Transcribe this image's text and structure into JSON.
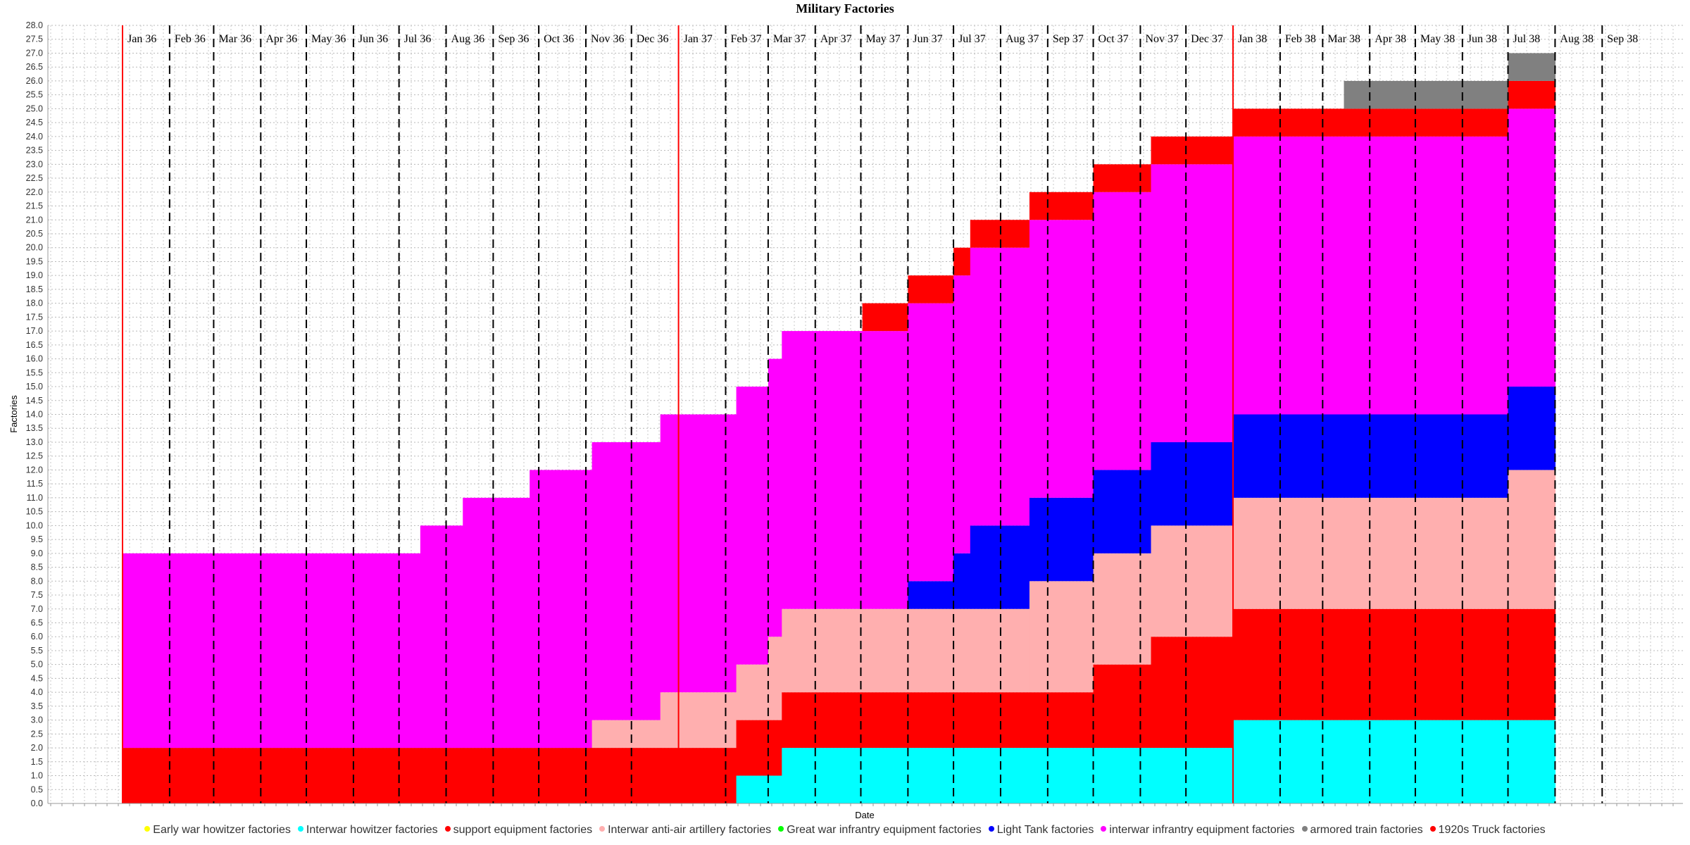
{
  "chart_data": {
    "type": "area",
    "title": "Military Factories",
    "xlabel": "Date",
    "ylabel": "Factories",
    "ylim": [
      0,
      28
    ],
    "ytick_step": 0.5,
    "grid": true,
    "stacked": true,
    "step": true,
    "legend_position": "bottom",
    "x_start": "1936-01-01",
    "x_end": "1938-08-01",
    "x_axis_max": "1938-10-01",
    "month_labels": [
      "Jan 36",
      "Feb 36",
      "Mar 36",
      "Apr 36",
      "May 36",
      "Jun 36",
      "Jul 36",
      "Aug 36",
      "Sep 36",
      "Oct 36",
      "Nov 36",
      "Dec 36",
      "Jan 37",
      "Feb 37",
      "Mar 37",
      "Apr 37",
      "May 37",
      "Jun 37",
      "Jul 37",
      "Aug 37",
      "Sep 37",
      "Oct 37",
      "Nov 37",
      "Dec 37",
      "Jan 38",
      "Feb 38",
      "Mar 38",
      "Apr 38",
      "May 38",
      "Jun 38",
      "Jul 38",
      "Aug 38",
      "Sep 38"
    ],
    "year_markers": [
      "1936-01-01",
      "1937-01-01",
      "1938-01-01"
    ],
    "legend": [
      {
        "name": "Early war howitzer factories",
        "color": "#ffff00"
      },
      {
        "name": "Interwar howitzer factories",
        "color": "#00ffff"
      },
      {
        "name": "support equipment factories",
        "color": "#ff0000"
      },
      {
        "name": "Interwar anti-air artillery factories",
        "color": "#ffafaf"
      },
      {
        "name": "Great war infrantry equipment factories",
        "color": "#00ff00"
      },
      {
        "name": "Light Tank factories",
        "color": "#0000ff"
      },
      {
        "name": "interwar infrantry equipment factories",
        "color": "#ff00ff"
      },
      {
        "name": "armored train factories",
        "color": "#808080"
      },
      {
        "name": "1920s Truck factories",
        "color": "#ff0000"
      }
    ],
    "series": [
      {
        "name": "Interwar howitzer factories",
        "color": "#00ffff",
        "steps": [
          [
            "1936-01-01",
            0
          ],
          [
            "1937-02-08",
            1
          ],
          [
            "1937-03-10",
            2
          ],
          [
            "1938-01-01",
            3
          ]
        ]
      },
      {
        "name": "support equipment factories",
        "color": "#ff0000",
        "steps": [
          [
            "1936-01-01",
            2
          ],
          [
            "1937-02-08",
            2
          ],
          [
            "1937-03-10",
            2
          ],
          [
            "1937-10-01",
            3
          ],
          [
            "1937-11-08",
            4
          ],
          [
            "1938-01-01",
            4
          ]
        ]
      },
      {
        "name": "Interwar anti-air artillery factories",
        "color": "#ffafaf",
        "steps": [
          [
            "1936-01-01",
            0
          ],
          [
            "1936-11-05",
            1
          ],
          [
            "1936-12-20",
            2
          ],
          [
            "1937-02-08",
            2
          ],
          [
            "1937-03-01",
            3
          ],
          [
            "1937-03-10",
            3
          ],
          [
            "1937-08-20",
            4
          ],
          [
            "1937-10-01",
            4
          ],
          [
            "1937-11-08",
            4
          ],
          [
            "1938-01-01",
            4
          ],
          [
            "1938-07-01",
            5
          ]
        ]
      },
      {
        "name": "Light Tank factories",
        "color": "#0000ff",
        "steps": [
          [
            "1936-01-01",
            0
          ],
          [
            "1937-06-01",
            1
          ],
          [
            "1937-07-01",
            2
          ],
          [
            "1937-07-12",
            3
          ],
          [
            "1937-08-20",
            3
          ],
          [
            "1937-10-01",
            3
          ],
          [
            "1937-11-08",
            3
          ],
          [
            "1938-01-01",
            3
          ]
        ]
      },
      {
        "name": "interwar infrantry equipment factories",
        "color": "#ff00ff",
        "steps": [
          [
            "1936-01-01",
            7
          ],
          [
            "1936-07-15",
            8
          ],
          [
            "1936-08-12",
            9
          ],
          [
            "1936-09-25",
            10
          ],
          [
            "1936-11-05",
            10
          ],
          [
            "1936-12-20",
            10
          ],
          [
            "1937-02-08",
            10
          ],
          [
            "1937-03-01",
            10
          ],
          [
            "1937-03-10",
            10
          ],
          [
            "1937-06-01",
            10
          ],
          [
            "1937-07-01",
            10
          ],
          [
            "1937-07-12",
            10
          ],
          [
            "1937-08-20",
            10
          ],
          [
            "1937-10-01",
            10
          ],
          [
            "1937-11-08",
            10
          ],
          [
            "1938-01-01",
            10
          ],
          [
            "1938-07-01",
            10
          ]
        ]
      },
      {
        "name": "1920s Truck factories",
        "color": "#ff0000",
        "steps": [
          [
            "1936-01-01",
            0
          ],
          [
            "1937-05-02",
            1
          ],
          [
            "1937-06-01",
            1
          ],
          [
            "1937-07-01",
            1
          ],
          [
            "1937-07-12",
            1
          ],
          [
            "1937-08-20",
            1
          ],
          [
            "1937-10-01",
            1
          ],
          [
            "1937-11-08",
            1
          ],
          [
            "1938-01-01",
            1
          ],
          [
            "1938-03-15",
            1
          ],
          [
            "1938-07-01",
            1
          ]
        ]
      },
      {
        "name": "armored train factories",
        "color": "#808080",
        "steps": [
          [
            "1936-01-01",
            0
          ],
          [
            "1938-03-15",
            1
          ]
        ]
      }
    ]
  }
}
